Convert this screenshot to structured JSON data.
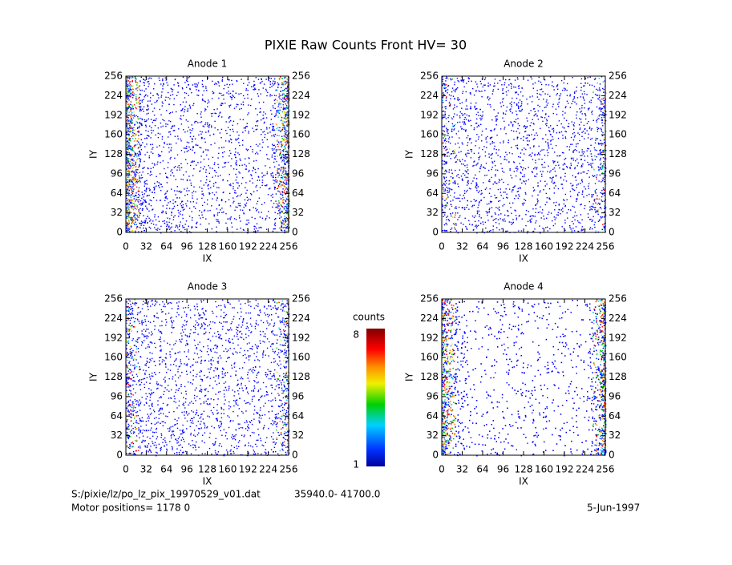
{
  "title": "PIXIE Raw Counts Front HV= 30",
  "chart_data": [
    {
      "type": "heatmap",
      "title": "Anode 1",
      "xlabel": "IX",
      "ylabel": "IY",
      "xlim": [
        0,
        256
      ],
      "ylim": [
        0,
        256
      ],
      "xticks": [
        0,
        32,
        64,
        96,
        128,
        160,
        192,
        224,
        256
      ],
      "yticks": [
        0,
        32,
        64,
        96,
        128,
        160,
        192,
        224,
        256
      ]
    },
    {
      "type": "heatmap",
      "title": "Anode 2",
      "xlabel": "IX",
      "ylabel": "IY",
      "xlim": [
        0,
        256
      ],
      "ylim": [
        0,
        256
      ],
      "xticks": [
        0,
        32,
        64,
        96,
        128,
        160,
        192,
        224,
        256
      ],
      "yticks": [
        0,
        32,
        64,
        96,
        128,
        160,
        192,
        224,
        256
      ]
    },
    {
      "type": "heatmap",
      "title": "Anode 3",
      "xlabel": "IX",
      "ylabel": "IY",
      "xlim": [
        0,
        256
      ],
      "ylim": [
        0,
        256
      ],
      "xticks": [
        0,
        32,
        64,
        96,
        128,
        160,
        192,
        224,
        256
      ],
      "yticks": [
        0,
        32,
        64,
        96,
        128,
        160,
        192,
        224,
        256
      ]
    },
    {
      "type": "heatmap",
      "title": "Anode 4",
      "xlabel": "IX",
      "ylabel": "IY",
      "xlim": [
        0,
        256
      ],
      "ylim": [
        0,
        256
      ],
      "xticks": [
        0,
        32,
        64,
        96,
        128,
        160,
        192,
        224,
        256
      ],
      "yticks": [
        0,
        32,
        64,
        96,
        128,
        160,
        192,
        224,
        256
      ]
    }
  ],
  "colorbar": {
    "label": "counts",
    "lim": [
      1,
      8
    ],
    "ticks": [
      1,
      8
    ]
  },
  "footer": {
    "file": "S:/pixie/lz/po_lz_pix_19970529_v01.dat",
    "range": "35940.0- 41700.0",
    "motor": "Motor positions= 1178 0",
    "date": "5-Jun-1997"
  }
}
